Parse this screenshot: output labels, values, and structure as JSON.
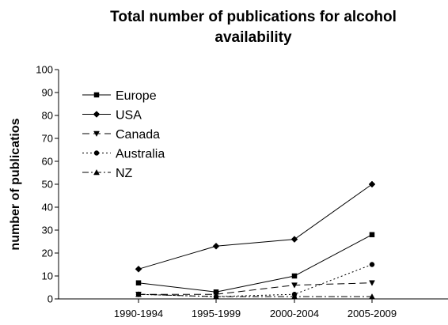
{
  "chart_data": {
    "type": "line",
    "title": [
      "Total number of publications for alcohol",
      "availability"
    ],
    "xlabel": "",
    "ylabel": "number of publicatios",
    "categories": [
      "1990-1994",
      "1995-1999",
      "2000-2004",
      "2005-2009"
    ],
    "ylim": [
      0,
      100
    ],
    "yticks": [
      0,
      10,
      20,
      30,
      40,
      50,
      60,
      70,
      80,
      90,
      100
    ],
    "grid": false,
    "legend_position": "top-left",
    "series": [
      {
        "name": "Europe",
        "values": [
          7,
          3,
          10,
          28
        ],
        "marker": "square",
        "dash": "solid"
      },
      {
        "name": "USA",
        "values": [
          13,
          23,
          26,
          50
        ],
        "marker": "diamond",
        "dash": "solid"
      },
      {
        "name": "Canada",
        "values": [
          2,
          2,
          6,
          7
        ],
        "marker": "triangle-down",
        "dash": "long-dash"
      },
      {
        "name": "Australia",
        "values": [
          2,
          1,
          2,
          15
        ],
        "marker": "circle",
        "dash": "dotted"
      },
      {
        "name": "NZ",
        "values": [
          2,
          1,
          1,
          1
        ],
        "marker": "triangle-up",
        "dash": "dash-dot"
      }
    ]
  }
}
